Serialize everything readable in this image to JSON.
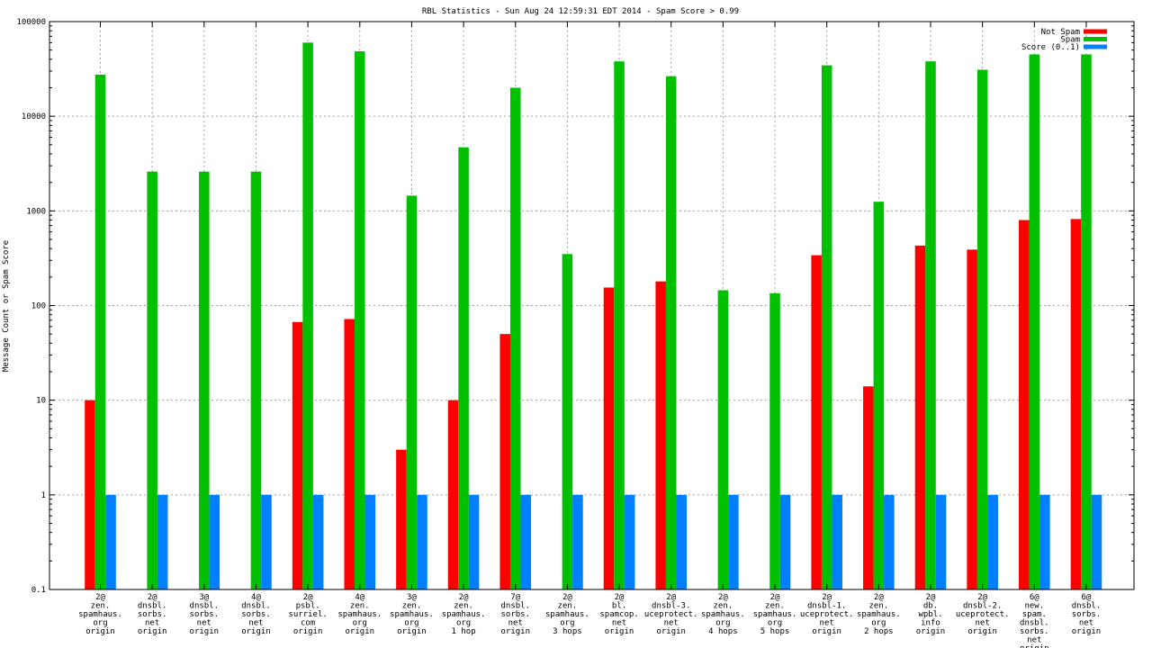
{
  "chart_data": {
    "type": "bar",
    "title": "RBL Statistics - Sun Aug 24 12:59:31 EDT 2014 - Spam Score > 0.99",
    "ylabel": "Message Count or Spam Score",
    "xlabel": "",
    "yscale": "log",
    "ylim": [
      0.1,
      100000
    ],
    "y_ticks": [
      "0.1",
      "1",
      "10",
      "100",
      "1000",
      "10000",
      "100000"
    ],
    "grid": true,
    "legend_position": "top-right",
    "categories": [
      [
        "2@",
        "zen.",
        "spamhaus.",
        "org",
        "origin"
      ],
      [
        "2@",
        "dnsbl.",
        "sorbs.",
        "net",
        "origin"
      ],
      [
        "3@",
        "dnsbl.",
        "sorbs.",
        "net",
        "origin"
      ],
      [
        "4@",
        "dnsbl.",
        "sorbs.",
        "net",
        "origin"
      ],
      [
        "2@",
        "psbl.",
        "surriel.",
        "com",
        "origin"
      ],
      [
        "4@",
        "zen.",
        "spamhaus.",
        "org",
        "origin"
      ],
      [
        "3@",
        "zen.",
        "spamhaus.",
        "org",
        "origin"
      ],
      [
        "2@",
        "zen.",
        "spamhaus.",
        "org",
        "1 hop"
      ],
      [
        "7@",
        "dnsbl.",
        "sorbs.",
        "net",
        "origin"
      ],
      [
        "2@",
        "zen.",
        "spamhaus.",
        "org",
        "3 hops"
      ],
      [
        "2@",
        "bl.",
        "spamcop.",
        "net",
        "origin"
      ],
      [
        "2@",
        "dnsbl-3.",
        "uceprotect.",
        "net",
        "origin"
      ],
      [
        "2@",
        "zen.",
        "spamhaus.",
        "org",
        "4 hops"
      ],
      [
        "2@",
        "zen.",
        "spamhaus.",
        "org",
        "5 hops"
      ],
      [
        "2@",
        "dnsbl-1.",
        "uceprotect.",
        "net",
        "origin"
      ],
      [
        "2@",
        "zen.",
        "spamhaus.",
        "org",
        "2 hops"
      ],
      [
        "2@",
        "db.",
        "wpbl.",
        "info",
        "origin"
      ],
      [
        "2@",
        "dnsbl-2.",
        "uceprotect.",
        "net",
        "origin"
      ],
      [
        "6@",
        "new.",
        "spam.",
        "dnsbl.",
        "sorbs.",
        "net",
        "origin"
      ],
      [
        "6@",
        "dnsbl.",
        "sorbs.",
        "net",
        "origin"
      ]
    ],
    "series": [
      {
        "name": "Not Spam",
        "color": "#ff0000",
        "values": [
          10,
          null,
          null,
          null,
          67,
          72,
          3,
          10,
          50,
          null,
          155,
          180,
          null,
          null,
          340,
          14,
          430,
          390,
          800,
          820
        ]
      },
      {
        "name": "Spam",
        "color": "#00c000",
        "values": [
          27500,
          2600,
          2600,
          2600,
          60000,
          48500,
          1450,
          4700,
          20000,
          350,
          38000,
          26500,
          145,
          135,
          34500,
          1250,
          38000,
          31000,
          45000,
          45000
        ]
      },
      {
        "name": "Score (0..1)",
        "color": "#0080ff",
        "values": [
          1,
          1,
          1,
          1,
          1,
          1,
          1,
          1,
          1,
          1,
          1,
          1,
          1,
          1,
          1,
          1,
          1,
          1,
          1,
          1
        ]
      }
    ]
  }
}
